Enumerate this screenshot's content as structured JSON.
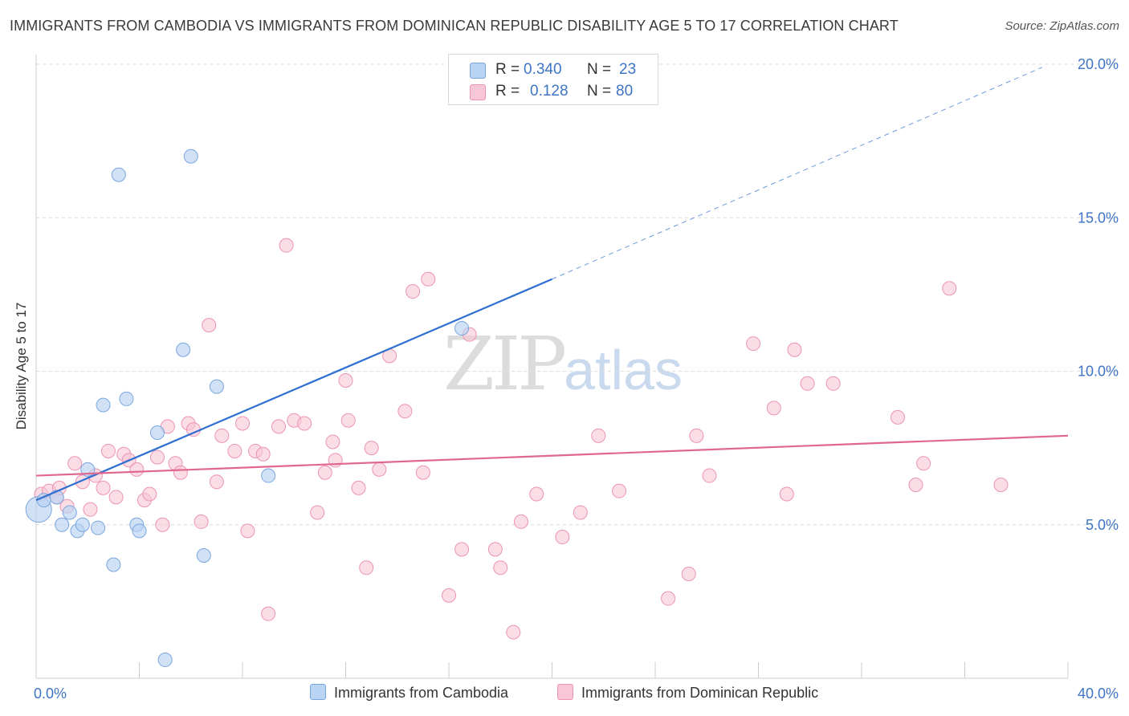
{
  "title": "IMMIGRANTS FROM CAMBODIA VS IMMIGRANTS FROM DOMINICAN REPUBLIC DISABILITY AGE 5 TO 17 CORRELATION CHART",
  "source": "Source: ZipAtlas.com",
  "watermark": {
    "zip": "ZIP",
    "atlas": "atlas"
  },
  "legend": {
    "cambodia": {
      "r_label": "R =",
      "r_value": "0.340",
      "n_label": "N =",
      "n_value": "23"
    },
    "dominican": {
      "r_label": "R =",
      "r_value": "0.128",
      "n_label": "N =",
      "n_value": "80"
    }
  },
  "colors": {
    "blue_fill": "#b9d3f3",
    "blue_stroke": "#7aa6de",
    "blue_line": "#2e6fcf",
    "pink_fill": "#f8c6d6",
    "pink_stroke": "#ec94b1",
    "pink_line": "#e0688f",
    "axis_text": "#3e74c6",
    "grid": "#dddddd"
  },
  "chart_data": {
    "type": "scatter",
    "title": "IMMIGRANTS FROM CAMBODIA VS IMMIGRANTS FROM DOMINICAN REPUBLIC DISABILITY AGE 5 TO 17 CORRELATION CHART",
    "xlabel": "",
    "ylabel": "Disability Age 5 to 17",
    "xlim": [
      0,
      40
    ],
    "ylim": [
      0,
      20
    ],
    "x_tick_labels": [
      "0.0%",
      "40.0%"
    ],
    "y_tick_labels": [
      "5.0%",
      "10.0%",
      "15.0%",
      "20.0%"
    ],
    "y_ticks": [
      5,
      10,
      15,
      20
    ],
    "grid": true,
    "legend_position": "bottom",
    "series": [
      {
        "name": "Immigrants from Cambodia",
        "color": "#b9d3f3",
        "points": [
          [
            0.1,
            5.5
          ],
          [
            0.3,
            5.8
          ],
          [
            0.8,
            5.9
          ],
          [
            1.0,
            5.0
          ],
          [
            1.3,
            5.4
          ],
          [
            1.6,
            4.8
          ],
          [
            1.8,
            5.0
          ],
          [
            2.0,
            6.8
          ],
          [
            2.4,
            4.9
          ],
          [
            2.6,
            8.9
          ],
          [
            3.0,
            3.7
          ],
          [
            3.2,
            16.4
          ],
          [
            3.5,
            9.1
          ],
          [
            3.9,
            5.0
          ],
          [
            4.0,
            4.8
          ],
          [
            4.7,
            8.0
          ],
          [
            5.0,
            0.6
          ],
          [
            5.7,
            10.7
          ],
          [
            6.0,
            17.0
          ],
          [
            6.5,
            4.0
          ],
          [
            7.0,
            9.5
          ],
          [
            9.0,
            6.6
          ],
          [
            16.5,
            11.4
          ]
        ],
        "trend": {
          "x": [
            0,
            20,
            39
          ],
          "y": [
            5.8,
            13.0,
            19.9
          ],
          "solid_until_x": 20
        }
      },
      {
        "name": "Immigrants from Dominican Republic",
        "color": "#f8c6d6",
        "points": [
          [
            0.2,
            6.0
          ],
          [
            0.5,
            6.1
          ],
          [
            0.8,
            5.9
          ],
          [
            0.9,
            6.2
          ],
          [
            1.2,
            5.6
          ],
          [
            1.5,
            7.0
          ],
          [
            1.8,
            6.4
          ],
          [
            2.1,
            5.5
          ],
          [
            2.3,
            6.6
          ],
          [
            2.6,
            6.2
          ],
          [
            2.8,
            7.4
          ],
          [
            3.1,
            5.9
          ],
          [
            3.4,
            7.3
          ],
          [
            3.6,
            7.1
          ],
          [
            3.9,
            6.8
          ],
          [
            4.2,
            5.8
          ],
          [
            4.4,
            6.0
          ],
          [
            4.7,
            7.2
          ],
          [
            4.9,
            5.0
          ],
          [
            5.1,
            8.2
          ],
          [
            5.4,
            7.0
          ],
          [
            5.6,
            6.7
          ],
          [
            5.9,
            8.3
          ],
          [
            6.1,
            8.1
          ],
          [
            6.4,
            5.1
          ],
          [
            6.7,
            11.5
          ],
          [
            7.0,
            6.4
          ],
          [
            7.2,
            7.9
          ],
          [
            7.7,
            7.4
          ],
          [
            8.0,
            8.3
          ],
          [
            8.2,
            4.8
          ],
          [
            8.5,
            7.4
          ],
          [
            8.8,
            7.3
          ],
          [
            9.0,
            2.1
          ],
          [
            9.4,
            8.2
          ],
          [
            9.7,
            14.1
          ],
          [
            10.0,
            8.4
          ],
          [
            10.4,
            8.3
          ],
          [
            10.9,
            5.4
          ],
          [
            11.2,
            6.7
          ],
          [
            11.5,
            7.7
          ],
          [
            11.6,
            7.1
          ],
          [
            12.0,
            9.7
          ],
          [
            12.1,
            8.4
          ],
          [
            12.5,
            6.2
          ],
          [
            12.8,
            3.6
          ],
          [
            13.0,
            7.5
          ],
          [
            13.3,
            6.8
          ],
          [
            13.7,
            10.5
          ],
          [
            14.3,
            8.7
          ],
          [
            14.6,
            12.6
          ],
          [
            15.0,
            6.7
          ],
          [
            15.2,
            13.0
          ],
          [
            16.0,
            2.7
          ],
          [
            16.5,
            4.2
          ],
          [
            16.8,
            11.2
          ],
          [
            17.8,
            4.2
          ],
          [
            18.0,
            3.6
          ],
          [
            18.5,
            1.5
          ],
          [
            18.8,
            5.1
          ],
          [
            19.4,
            6.0
          ],
          [
            20.4,
            4.6
          ],
          [
            21.1,
            5.4
          ],
          [
            21.8,
            7.9
          ],
          [
            22.6,
            6.1
          ],
          [
            24.5,
            2.6
          ],
          [
            25.3,
            3.4
          ],
          [
            25.6,
            7.9
          ],
          [
            26.1,
            6.6
          ],
          [
            27.8,
            10.9
          ],
          [
            28.6,
            8.8
          ],
          [
            29.1,
            6.0
          ],
          [
            29.4,
            10.7
          ],
          [
            29.9,
            9.6
          ],
          [
            30.9,
            9.6
          ],
          [
            33.4,
            8.5
          ],
          [
            34.1,
            6.3
          ],
          [
            34.4,
            7.0
          ],
          [
            35.4,
            12.7
          ],
          [
            37.4,
            6.3
          ]
        ],
        "trend": {
          "x": [
            0,
            40
          ],
          "y": [
            6.6,
            7.9
          ]
        }
      }
    ]
  },
  "bottom_legend": {
    "cambodia_label": "Immigrants from Cambodia",
    "dominican_label": "Immigrants from Dominican Republic"
  }
}
